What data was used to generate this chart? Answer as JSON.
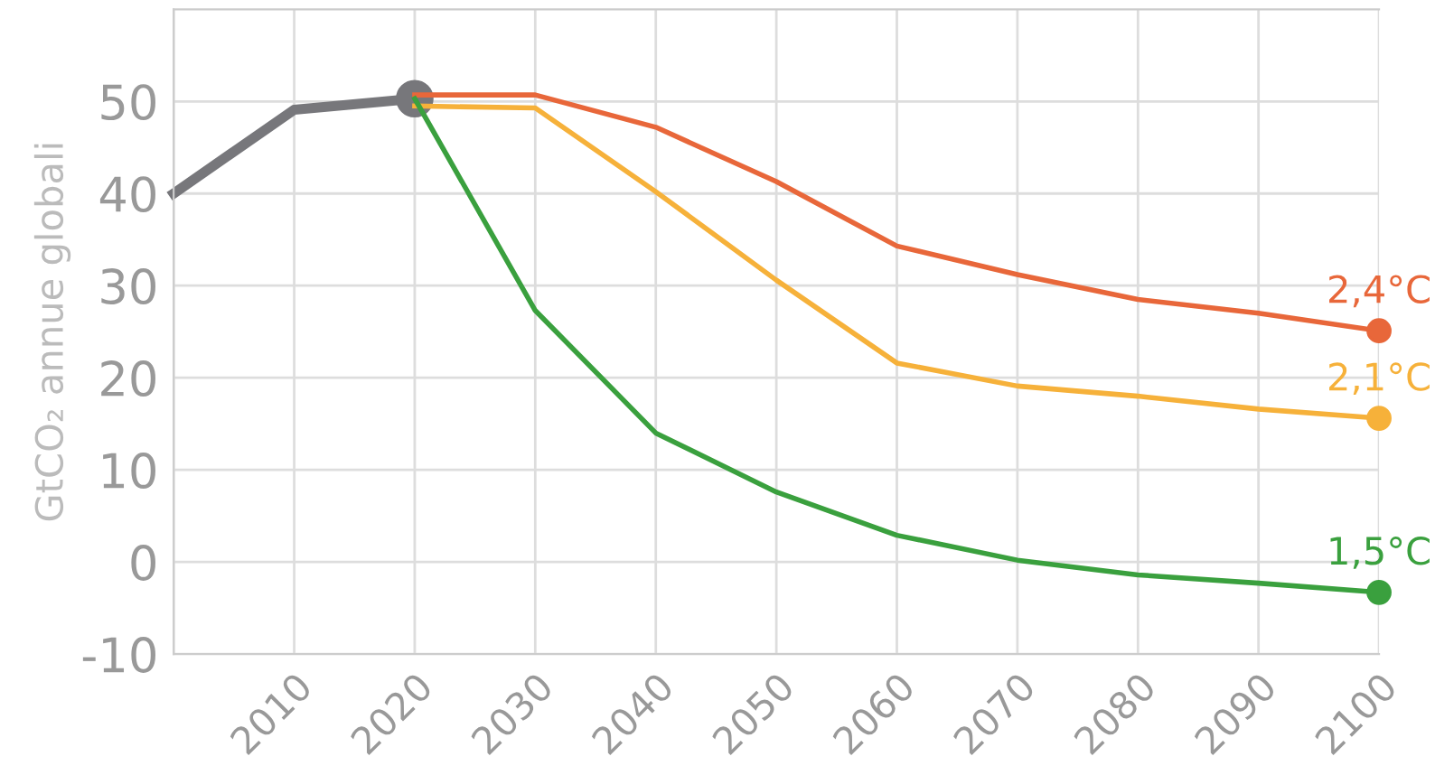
{
  "chart_data": {
    "type": "line",
    "ylabel": "GtCO₂ annue globali",
    "xlim": [
      2000,
      2100
    ],
    "xticks": [
      {
        "value": 2000,
        "label": null
      },
      2010,
      2020,
      2030,
      2040,
      2050,
      2060,
      2070,
      2080,
      2090,
      2100
    ],
    "ylim": [
      -10,
      60
    ],
    "yticks": [
      -10,
      0,
      10,
      20,
      30,
      40,
      50
    ],
    "grid": true,
    "legend": false,
    "series": [
      {
        "color": "#77777b",
        "x": [
          2000,
          2010,
          2020
        ],
        "values": [
          40,
          49.1,
          50.3
        ]
      },
      {
        "name": "2,4°C",
        "color": "#e8673a",
        "x": [
          2020,
          2030,
          2040,
          2050,
          2060,
          2070,
          2080,
          2090,
          2100
        ],
        "values": [
          50.7,
          50.7,
          47.2,
          41.3,
          34.3,
          31.2,
          28.5,
          27,
          25.1
        ]
      },
      {
        "name": "2,1°C",
        "color": "#f6b13a",
        "x": [
          2020,
          2030,
          2040,
          2050,
          2060,
          2070,
          2080,
          2090,
          2100
        ],
        "values": [
          49.5,
          49.3,
          40.2,
          30.6,
          21.6,
          19.1,
          18,
          16.6,
          15.6
        ]
      },
      {
        "name": "1,5°C",
        "color": "#3aa03e",
        "x": [
          2020,
          2030,
          2040,
          2050,
          2060,
          2070,
          2080,
          2090,
          2100
        ],
        "values": [
          50.3,
          27.3,
          14,
          7.6,
          2.9,
          0.2,
          -1.4,
          -2.3,
          -3.3
        ]
      }
    ]
  }
}
